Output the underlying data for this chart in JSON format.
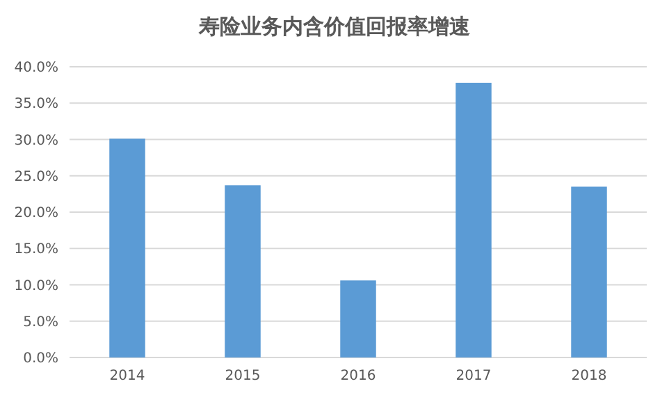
{
  "chart_data": {
    "type": "bar",
    "title": "寿险业务内含价值回报率增速",
    "categories": [
      "2014",
      "2015",
      "2016",
      "2017",
      "2018"
    ],
    "values": [
      30.1,
      23.7,
      10.6,
      37.8,
      23.5
    ],
    "color": "#5b9bd5",
    "ylim": [
      0,
      40
    ],
    "yticks": [
      {
        "value": 0,
        "label": "0.0%"
      },
      {
        "value": 5,
        "label": "5.0%"
      },
      {
        "value": 10,
        "label": "10.0%"
      },
      {
        "value": 15,
        "label": "15.0%"
      },
      {
        "value": 20,
        "label": "20.0%"
      },
      {
        "value": 25,
        "label": "25.0%"
      },
      {
        "value": 30,
        "label": "30.0%"
      },
      {
        "value": 35,
        "label": "35.0%"
      },
      {
        "value": 40,
        "label": "40.0%"
      }
    ],
    "grid": true
  }
}
